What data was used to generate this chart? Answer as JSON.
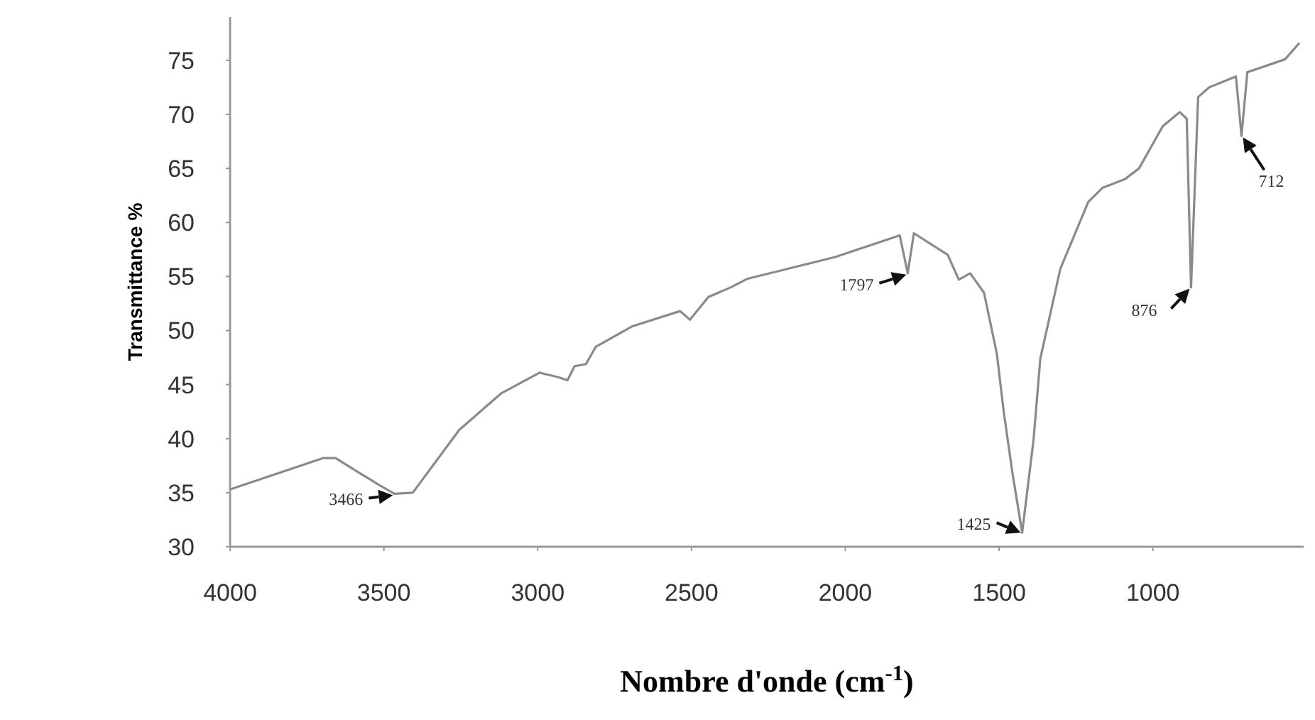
{
  "chart_data": {
    "type": "line",
    "xlabel": "Nombre d'onde (cm$^{-1}$)",
    "ylabel": "Transmittance %",
    "xlim": [
      4000,
      510
    ],
    "xticks": [
      4000,
      3500,
      3000,
      2500,
      2000,
      1500,
      1000
    ],
    "ylim": [
      30,
      79
    ],
    "yticks": [
      30,
      35,
      40,
      45,
      50,
      55,
      60,
      65,
      70,
      75
    ],
    "grid": false,
    "line_style": "solid",
    "series": [
      {
        "color": "#8a8a8a",
        "x": [
          4000,
          3698,
          3657,
          3515,
          3466,
          3406,
          3255,
          3118,
          2994,
          2935,
          2903,
          2880,
          2843,
          2811,
          2692,
          2537,
          2505,
          2445,
          2372,
          2317,
          2033,
          1823,
          1797,
          1777,
          1667,
          1631,
          1594,
          1549,
          1507,
          1485,
          1457,
          1425,
          1388,
          1366,
          1301,
          1210,
          1164,
          1091,
          1045,
          968,
          913,
          890,
          876,
          853,
          817,
          730,
          712,
          693,
          661,
          570,
          524
        ],
        "values": [
          35.3,
          38.2,
          38.2,
          35.7,
          34.9,
          35.0,
          40.8,
          44.2,
          46.1,
          45.7,
          45.4,
          46.7,
          46.9,
          48.5,
          50.4,
          51.8,
          51.0,
          53.1,
          54.0,
          54.8,
          56.8,
          58.8,
          55.3,
          59.0,
          57.0,
          54.7,
          55.3,
          53.5,
          47.8,
          42.5,
          36.9,
          31.3,
          39.9,
          47.4,
          55.7,
          61.9,
          63.2,
          64.0,
          65.0,
          68.9,
          70.2,
          69.6,
          54.0,
          71.6,
          72.5,
          73.5,
          68.0,
          73.9,
          74.2,
          75.1,
          76.6
        ]
      }
    ],
    "annotations": [
      {
        "text": "3466",
        "x": 3466,
        "y": 34.9
      },
      {
        "text": "1797",
        "x": 1797,
        "y": 55.3
      },
      {
        "text": "1425",
        "x": 1425,
        "y": 31.3
      },
      {
        "text": "876",
        "x": 876,
        "y": 54.0
      },
      {
        "text": "712",
        "x": 712,
        "y": 68.0
      }
    ]
  }
}
